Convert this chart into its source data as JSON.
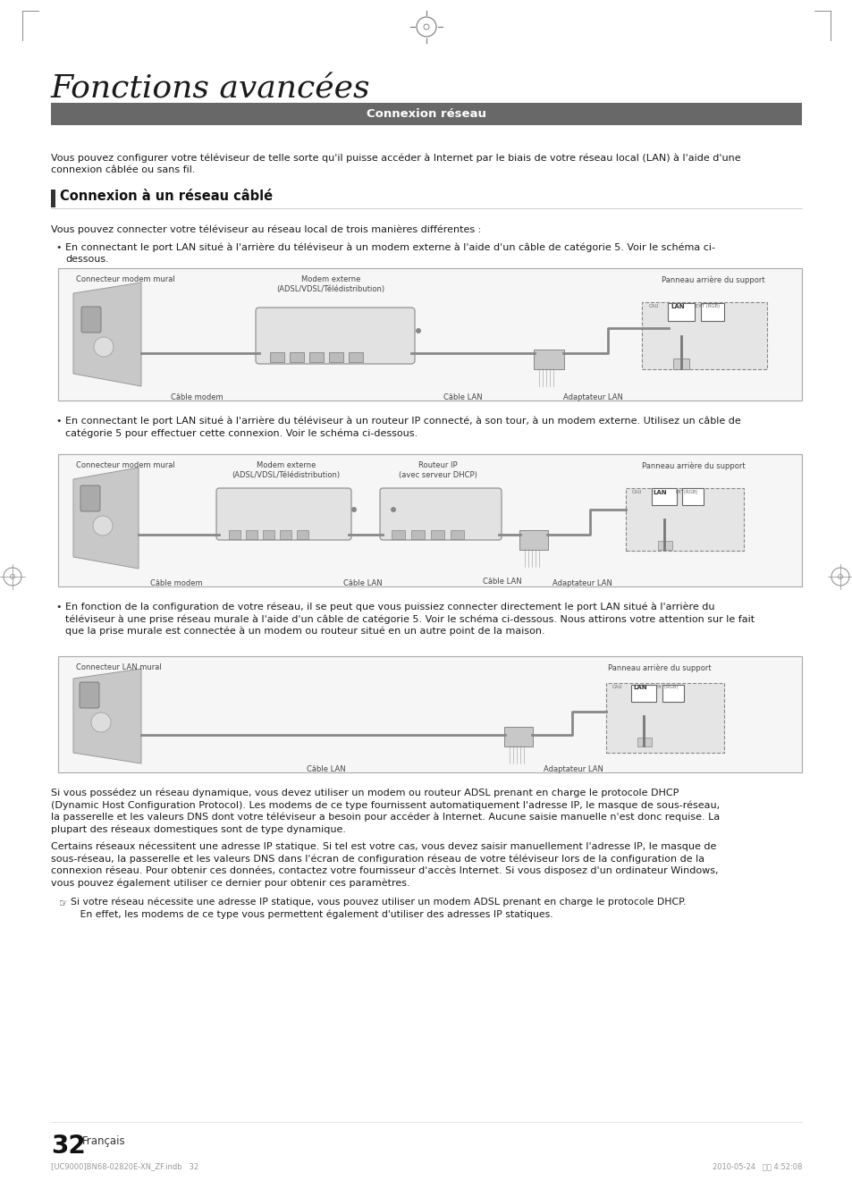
{
  "title": "Fonctions avancées",
  "section_header": "Connexion réseau",
  "section_header_bg": "#686868",
  "section_header_color": "#ffffff",
  "subsection_title": "Connexion à un réseau câblé",
  "subsection_bar_color": "#333333",
  "intro_text": "Vous pouvez configurer votre téléviseur de telle sorte qu'il puisse accéder à Internet par le biais de votre réseau local (LAN) à l'aide d'une\nconnexion câblée ou sans fil.",
  "sub_intro_text": "Vous pouvez connecter votre téléviseur au réseau local de trois manières différentes :",
  "bullet1_line1": "En connectant le port LAN situé à l'arrière du téléviseur à un modem externe à l'aide d'un câble de catégorie 5. Voir le schéma ci-",
  "bullet1_line2": "dessous.",
  "bullet2_text": "En connectant le port LAN situé à l'arrière du téléviseur à un routeur IP connecté, à son tour, à un modem externe. Utilisez un câble de\ncatégorie 5 pour effectuer cette connexion. Voir le schéma ci-dessous.",
  "bullet3_text": "En fonction de la configuration de votre réseau, il se peut que vous puissiez connecter directement le port LAN situé à l'arrière du\ntéléviseur à une prise réseau murale à l'aide d'un câble de catégorie 5. Voir le schéma ci-dessous. Nous attirons votre attention sur le fait\nque la prise murale est connectée à un modem ou routeur situé en un autre point de la maison.",
  "para1_text": "Si vous possédez un réseau dynamique, vous devez utiliser un modem ou routeur ADSL prenant en charge le protocole DHCP\n(Dynamic Host Configuration Protocol). Les modems de ce type fournissent automatiquement l'adresse IP, le masque de sous-réseau,\nla passerelle et les valeurs DNS dont votre téléviseur a besoin pour accéder à Internet. Aucune saisie manuelle n'est donc requise. La\nplupart des réseaux domestiques sont de type dynamique.",
  "para2_text": "Certains réseaux nécessitent une adresse IP statique. Si tel est votre cas, vous devez saisir manuellement l'adresse IP, le masque de\nsous-réseau, la passerelle et les valeurs DNS dans l'écran de configuration réseau de votre téléviseur lors de la configuration de la\nconnexion réseau. Pour obtenir ces données, contactez votre fournisseur d'accès Internet. Si vous disposez d'un ordinateur Windows,\nvous pouvez également utiliser ce dernier pour obtenir ces paramètres.",
  "note_text": "Si votre réseau nécessite une adresse IP statique, vous pouvez utiliser un modem ADSL prenant en charge le protocole DHCP.\n   En effet, les modems de ce type vous permettent également d'utiliser des adresses IP statiques.",
  "footer_left": "[UC9000]BN68-02820E-XN_ZF.indb   32",
  "footer_right": "2010-05-24   오후 4:52:08",
  "page_number": "32",
  "page_lang": "Français",
  "bg_color": "#ffffff",
  "text_color": "#1a1a1a",
  "diagram_bg": "#f6f6f6",
  "diagram_border": "#aaaaaa"
}
